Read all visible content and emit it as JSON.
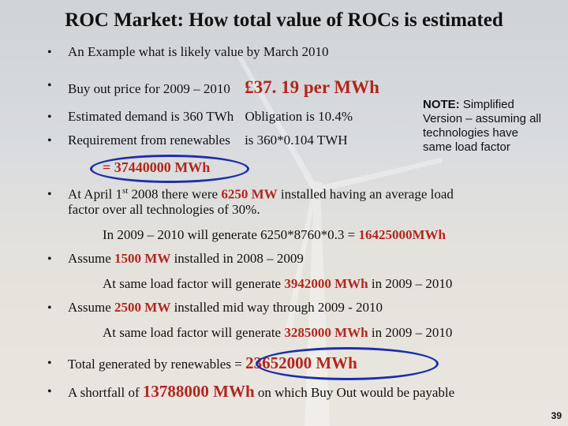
{
  "title": "ROC Market: How total value of ROCs is estimated",
  "bullet_char": "•",
  "lines": {
    "example": "An Example what is likely value by March 2010",
    "buyout_label": "Buy out price for 2009 – 2010",
    "buyout_value": "£37. 19 per MWh",
    "demand": "Estimated demand is 360 TWh",
    "obligation": "Obligation is 10.4%",
    "requirement_label": "Requirement from renewables",
    "requirement_calc": "is 360*0.104  TWH",
    "requirement_result": "=  37440000 MWh",
    "april_1": "At April 1",
    "april_sup": "st",
    "april_2": " 2008 there were ",
    "april_mw": "6250 MW",
    "april_3": " installed having an average load",
    "april_4": "factor  over all technologies of 30%.",
    "gen2009_text": "In 2009 – 2010 will generate 6250*8760*0.3 = ",
    "gen2009_value": "16425000MWh",
    "assume1_a": "Assume ",
    "assume1_mw": "1500 MW",
    "assume1_b": " installed in 2008 – 2009",
    "same1_a": "At same load factor will generate   ",
    "same1_value": "3942000 MWh",
    "same1_b": " in 2009 – 2010",
    "assume2_a": "Assume ",
    "assume2_mw": "2500 MW",
    "assume2_b": " installed mid way through 2009 - 2010",
    "same2_a": "At same load factor will generate   ",
    "same2_value": "3285000 MWh",
    "same2_b": " in 2009 – 2010",
    "total_a": "Total generated by renewables = ",
    "total_value": "23652000 MWh",
    "shortfall_a": "A shortfall of  ",
    "shortfall_value": "13788000 MWh",
    "shortfall_b": " on which Buy Out would be payable"
  },
  "note": {
    "head": "NOTE:",
    "body": " Simplified Version – assuming all technologies have same load factor"
  },
  "page_number": "39",
  "colors": {
    "highlight": "#b3261e",
    "oval": "#1d2fa8"
  }
}
